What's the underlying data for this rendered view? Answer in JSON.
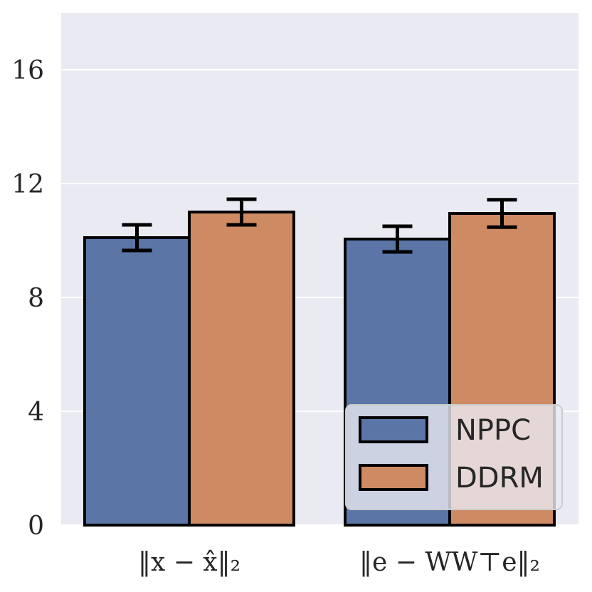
{
  "chart_data": {
    "type": "bar",
    "categories": [
      "‖x − x̂‖₂",
      "‖e − WW⊤e‖₂"
    ],
    "series": [
      {
        "name": "NPPC",
        "values": [
          10.1,
          10.05
        ],
        "err": [
          0.45,
          0.45
        ],
        "color": "#5a75a6"
      },
      {
        "name": "DDRM",
        "values": [
          11.0,
          10.95
        ],
        "err": [
          0.45,
          0.48
        ],
        "color": "#cd8a63"
      }
    ],
    "yticks": [
      0,
      4,
      8,
      12,
      16
    ],
    "ytick_labels": [
      "0",
      "4",
      "8",
      "12",
      "16"
    ],
    "ylim": [
      0,
      18
    ],
    "grid": true,
    "legend_position": "bottom-right",
    "title": "",
    "xlabel": "",
    "ylabel": "",
    "colors": {
      "background": "#eaeaf2",
      "grid": "#ffffff",
      "edge": "#000000"
    }
  }
}
